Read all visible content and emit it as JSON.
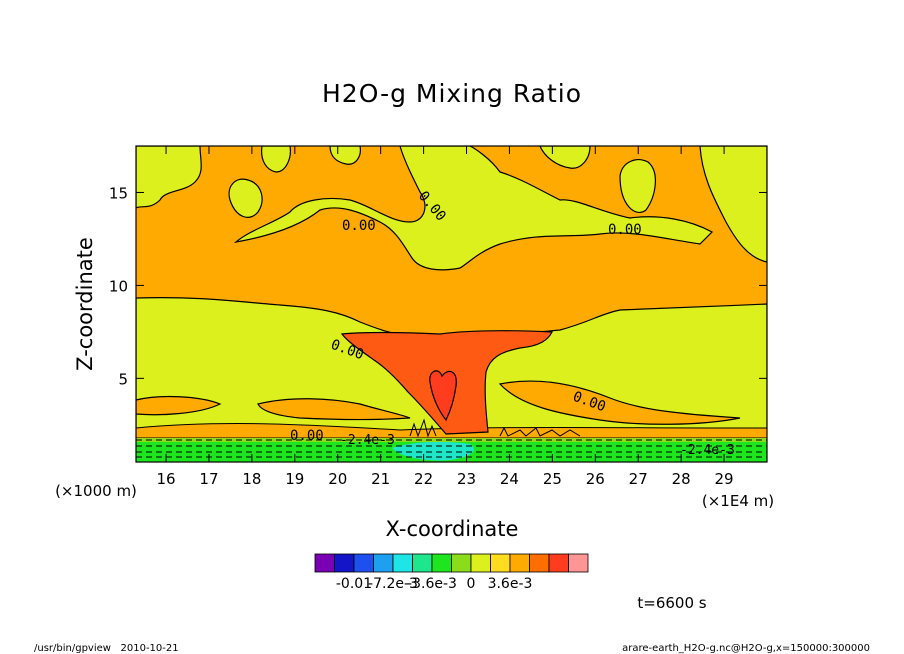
{
  "chart_data": {
    "type": "heatmap",
    "title": "H2O-g Mixing Ratio",
    "xlabel": "X-coordinate",
    "ylabel": "Z-coordinate",
    "x_unit_note": "(×1E4 m)",
    "y_unit_note": "(×1000 m)",
    "xlim": [
      15.3,
      30.0
    ],
    "ylim": [
      0.5,
      17.5
    ],
    "x_ticks": [
      "16",
      "17",
      "18",
      "19",
      "20",
      "21",
      "22",
      "23",
      "24",
      "25",
      "26",
      "27",
      "28",
      "29"
    ],
    "y_ticks": [
      "5",
      "10",
      "15"
    ],
    "contour_labels": [
      "0.00",
      "0.00",
      "0.00",
      "0.00",
      "0.00",
      "0.00",
      "-2.4e-3",
      "-2.4e-3"
    ],
    "colorbar": {
      "colors": [
        "#7a00b4",
        "#1414c8",
        "#1e50f0",
        "#1ea0f0",
        "#1ee6e6",
        "#1ee68c",
        "#1ee61e",
        "#8cdc1e",
        "#dcf01e",
        "#ffdc1e",
        "#ffaa00",
        "#ff6e00",
        "#ff3c1e",
        "#ff9696"
      ],
      "tick_labels": [
        "-0.01",
        "-7.2e-3",
        "-3.6e-3",
        "0",
        "3.6e-3"
      ]
    },
    "time_label": "t=6600 s",
    "colors": {
      "orange": "#ffaa00",
      "lime": "#dcf01e",
      "red_orange": "#ff5a14",
      "red": "#ff3c1e",
      "green": "#1ee61e",
      "cyan": "#1ee6c8"
    }
  },
  "footer": {
    "left": "/usr/bin/gpview   2010-10-21",
    "right": "arare-earth_H2O-g.nc@H2O-g,x=150000:300000"
  }
}
